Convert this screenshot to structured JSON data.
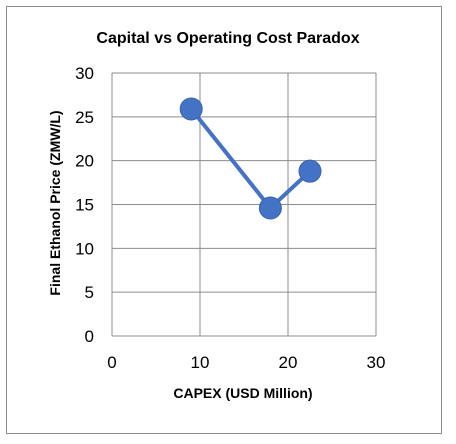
{
  "chart_data": {
    "type": "scatter",
    "title": "Capital vs Operating Cost Paradox",
    "xlabel": "CAPEX (USD Million)",
    "ylabel": "Final Ethanol Price (ZMW/L)",
    "xlim": [
      0,
      30
    ],
    "ylim": [
      0,
      30
    ],
    "x_ticks": [
      "0",
      "10",
      "20",
      "30"
    ],
    "y_ticks": [
      "0",
      "5",
      "10",
      "15",
      "20",
      "25",
      "30"
    ],
    "grid": true,
    "legend": "none",
    "connected": true,
    "series": [
      {
        "color": "#4472C4",
        "points": [
          {
            "x": 9,
            "y": 25.9
          },
          {
            "x": 18,
            "y": 14.6
          },
          {
            "x": 22.5,
            "y": 18.8
          }
        ]
      }
    ]
  }
}
